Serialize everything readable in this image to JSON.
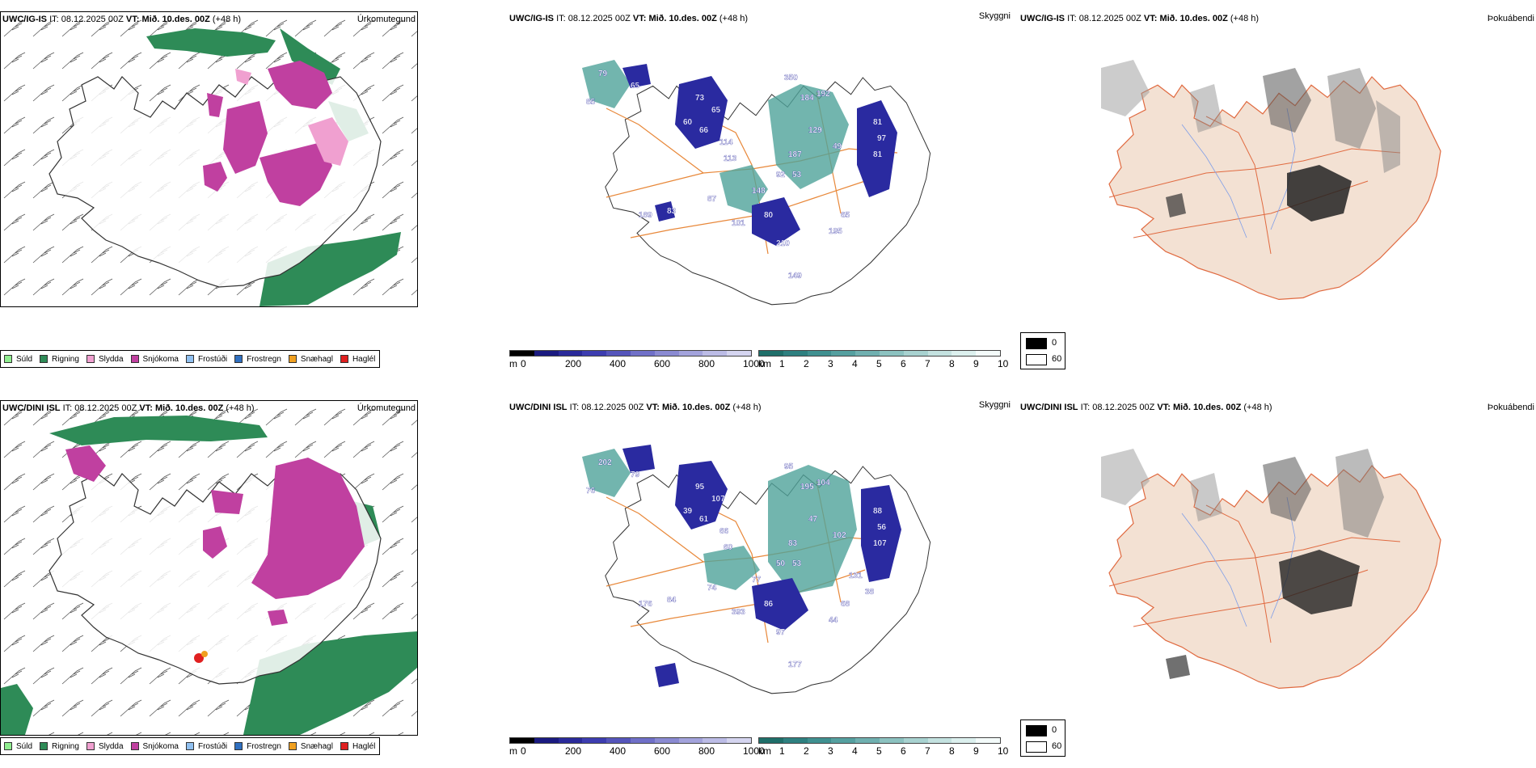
{
  "rows": [
    {
      "model": "UWC/IG-IS",
      "init_label": "IT:",
      "init_time": "08.12.2025 00Z",
      "valid_label": "VT:",
      "valid_time": "Mið. 10.des. 00Z",
      "lead": "(+48 h)"
    },
    {
      "model": "UWC/DINI ISL",
      "init_label": "IT:",
      "init_time": "08.12.2025 00Z",
      "valid_label": "VT:",
      "valid_time": "Mið. 10.des. 00Z",
      "lead": "(+48 h)"
    }
  ],
  "panel_titles": {
    "precip": "Úrkomutegund",
    "visibility": "Skyggni",
    "fog": "Þokuábendi"
  },
  "precip_legend": [
    {
      "label": "Súld",
      "color": "#90ee90"
    },
    {
      "label": "Rigning",
      "color": "#2e8b57"
    },
    {
      "label": "Slydda",
      "color": "#f0a0d0"
    },
    {
      "label": "Snjókoma",
      "color": "#c040a0"
    },
    {
      "label": "Frostúði",
      "color": "#90c0f0"
    },
    {
      "label": "Frostregn",
      "color": "#3070c0"
    },
    {
      "label": "Snæhagl",
      "color": "#f0a020"
    },
    {
      "label": "Haglél",
      "color": "#e02020"
    }
  ],
  "visibility_scale": {
    "m_unit": "m",
    "m_ticks": [
      "0",
      "200",
      "400",
      "600",
      "800",
      "1000"
    ],
    "km_unit": "km",
    "km_ticks": [
      "1",
      "2",
      "3",
      "4",
      "5",
      "6",
      "7",
      "8",
      "9",
      "10"
    ],
    "m_colors": [
      "#000000",
      "#1a1a80",
      "#2a2a9a",
      "#3d3db0",
      "#5555bb",
      "#7070c8",
      "#8a8ad2",
      "#a3a3dc",
      "#bcbce6",
      "#d5d5f0"
    ],
    "km_colors": [
      "#1f6f6a",
      "#2e8080",
      "#3f9090",
      "#55a0a0",
      "#70b0b0",
      "#8cc2c0",
      "#a8d2d0",
      "#c4e2e0",
      "#dcf0ee",
      "#f4fbfa"
    ]
  },
  "fog_legend": {
    "max_label": "0",
    "min_label": "60"
  },
  "visibility_labels_top": [
    "79",
    "85",
    "65",
    "73",
    "65",
    "60",
    "66",
    "114",
    "113",
    "350",
    "184",
    "192",
    "81",
    "129",
    "97",
    "81",
    "49",
    "187",
    "83",
    "87",
    "148",
    "189",
    "101",
    "80",
    "65",
    "195",
    "210",
    "149",
    "92",
    "53"
  ],
  "visibility_labels_bottom": [
    "202",
    "76",
    "79",
    "95",
    "107",
    "39",
    "61",
    "66",
    "60",
    "95",
    "195",
    "104",
    "88",
    "47",
    "56",
    "107",
    "102",
    "83",
    "84",
    "74",
    "77",
    "176",
    "393",
    "86",
    "68",
    "44",
    "97",
    "177",
    "50",
    "53",
    "131",
    "38"
  ],
  "colors": {
    "rain": "#2e8b57",
    "snow": "#c040a0",
    "sleet": "#f0a0d0",
    "vis_blue": "#2a2aa0",
    "vis_teal": "#4fa39a",
    "road": "#e8883a",
    "land_fog": "#f3e1d3",
    "fog_dark": "#222222",
    "river": "#7f9ee8",
    "road_fog": "#e06a40"
  }
}
